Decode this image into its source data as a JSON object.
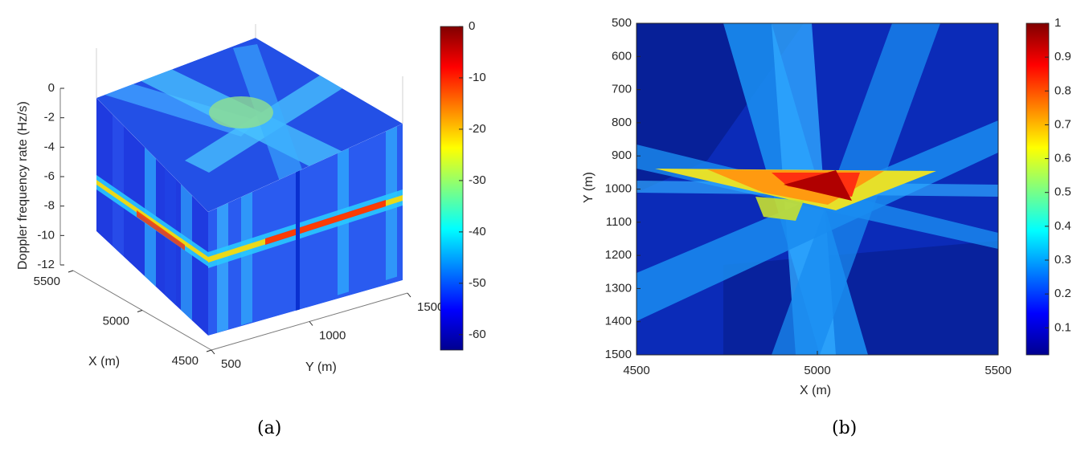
{
  "chart_data": [
    {
      "type": "heatmap",
      "panel_label": "(a)",
      "view": "3d-slice",
      "x_axis": {
        "label": "X (m)",
        "ticks": [
          4500,
          5000,
          5500
        ],
        "range": [
          4500,
          5500
        ]
      },
      "y_axis": {
        "label": "Y (m)",
        "ticks": [
          500,
          1000,
          1500
        ],
        "range": [
          500,
          1500
        ]
      },
      "z_axis": {
        "label": "Doppler frequency rate (Hz/s)",
        "ticks": [
          0,
          -2,
          -4,
          -6,
          -8,
          -10,
          -12
        ],
        "range": [
          -12,
          0
        ]
      },
      "colorbar": {
        "ticks": [
          0,
          -10,
          -20,
          -30,
          -40,
          -50,
          -60
        ],
        "range": [
          -63,
          0
        ],
        "colormap": "jet"
      },
      "peak": {
        "x": 5000,
        "y": 1000,
        "z": -9.3,
        "value": 0
      },
      "grid": false
    },
    {
      "type": "heatmap",
      "panel_label": "(b)",
      "view": "2d",
      "x_axis": {
        "label": "X (m)",
        "ticks": [
          4500,
          5000,
          5500
        ],
        "range": [
          4500,
          5500
        ]
      },
      "y_axis": {
        "label": "Y (m)",
        "ticks": [
          500,
          600,
          700,
          800,
          900,
          1000,
          1100,
          1200,
          1300,
          1400,
          1500
        ],
        "range": [
          500,
          1500
        ],
        "reversed": true
      },
      "colorbar": {
        "ticks": [
          1,
          0.9,
          0.8,
          0.7,
          0.6,
          0.5,
          0.4,
          0.3,
          0.2,
          0.1
        ],
        "range": [
          0.02,
          1
        ],
        "colormap": "jet"
      },
      "peak": {
        "x": 5030,
        "y": 990,
        "value": 1
      },
      "grid": false
    }
  ]
}
